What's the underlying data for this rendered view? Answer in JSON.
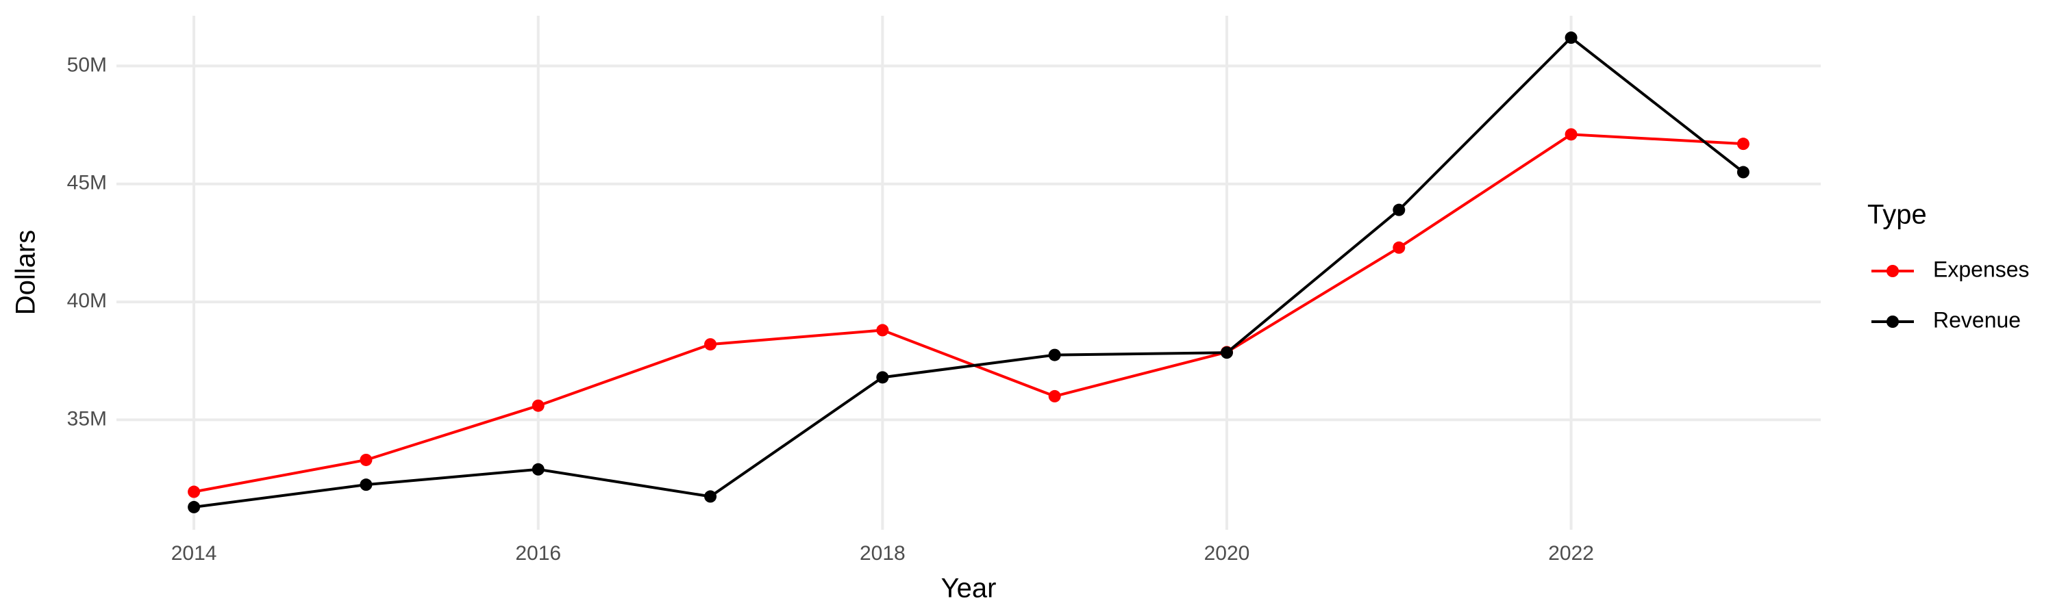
{
  "chart_data": {
    "type": "line",
    "x_label": "Year",
    "y_label": "Dollars",
    "legend_title": "Type",
    "legend_position": "right",
    "grid": true,
    "x": [
      2014,
      2015,
      2016,
      2017,
      2018,
      2019,
      2020,
      2021,
      2022,
      2023
    ],
    "series": [
      {
        "name": "Expenses",
        "color": "#ff0000",
        "values": [
          31950000,
          33300000,
          35600000,
          38200000,
          38800000,
          36000000,
          37870000,
          42300000,
          47100000,
          46700000
        ]
      },
      {
        "name": "Revenue",
        "color": "#000000",
        "values": [
          31300000,
          32250000,
          32900000,
          31750000,
          36800000,
          37750000,
          37850000,
          43900000,
          51200000,
          45500000
        ]
      }
    ],
    "xlim": [
      2013.55,
      2023.45
    ],
    "xticks": [
      2014,
      2016,
      2018,
      2020,
      2022
    ],
    "ylim": [
      30340000,
      52130000
    ],
    "yticks": [
      {
        "value": 35000000,
        "label": "35M"
      },
      {
        "value": 40000000,
        "label": "40M"
      },
      {
        "value": 45000000,
        "label": "45M"
      },
      {
        "value": 50000000,
        "label": "50M"
      }
    ]
  }
}
